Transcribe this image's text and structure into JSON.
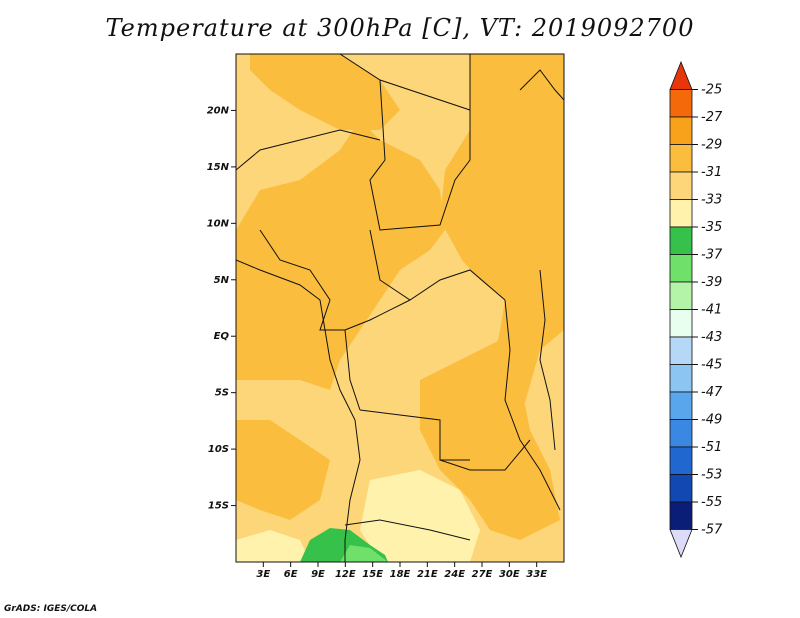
{
  "title": "Temperature at 300hPa [C], VT: 2019092700",
  "credit": "GrADS: IGES/COLA",
  "map": {
    "lon_range": [
      0,
      36
    ],
    "lat_range": [
      -20,
      25
    ],
    "lat_ticks": [
      {
        "value": 20,
        "label": "20N"
      },
      {
        "value": 15,
        "label": "15N"
      },
      {
        "value": 10,
        "label": "10N"
      },
      {
        "value": 5,
        "label": "5N"
      },
      {
        "value": 0,
        "label": "EQ"
      },
      {
        "value": -5,
        "label": "5S"
      },
      {
        "value": -10,
        "label": "10S"
      },
      {
        "value": -15,
        "label": "15S"
      }
    ],
    "lon_ticks": [
      {
        "value": 3,
        "label": "3E"
      },
      {
        "value": 6,
        "label": "6E"
      },
      {
        "value": 9,
        "label": "9E"
      },
      {
        "value": 12,
        "label": "12E"
      },
      {
        "value": 15,
        "label": "15E"
      },
      {
        "value": 18,
        "label": "18E"
      },
      {
        "value": 21,
        "label": "21E"
      },
      {
        "value": 24,
        "label": "24E"
      },
      {
        "value": 27,
        "label": "27E"
      },
      {
        "value": 30,
        "label": "30E"
      },
      {
        "value": 33,
        "label": "33E"
      }
    ]
  },
  "colorbar": {
    "labels": [
      "-25",
      "-27",
      "-29",
      "-31",
      "-33",
      "-35",
      "-37",
      "-39",
      "-41",
      "-43",
      "-45",
      "-47",
      "-49",
      "-51",
      "-53",
      "-55",
      "-57"
    ],
    "colors": [
      "#e8350c",
      "#f46a0a",
      "#f8a21c",
      "#fbbd3e",
      "#fdd67a",
      "#fff2ac",
      "#36c24a",
      "#6fe06a",
      "#b4f4a8",
      "#e8fff0",
      "#b4d8f6",
      "#8cc4f2",
      "#5aa6ec",
      "#3a88e2",
      "#2068d0",
      "#1248b2",
      "#0a1e78",
      "#dcdcf8"
    ],
    "below_label": "",
    "unit": "C"
  }
}
